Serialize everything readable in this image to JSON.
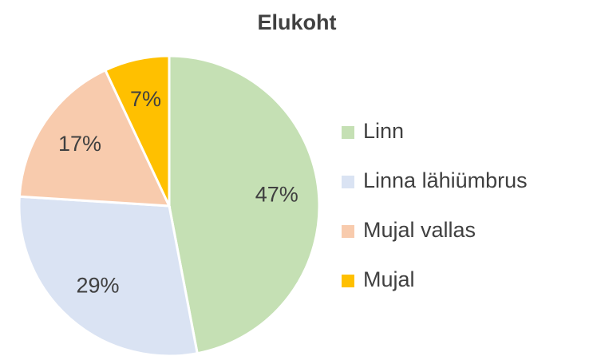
{
  "chart_data": {
    "type": "pie",
    "title": "Elukoht",
    "categories": [
      "Linn",
      "Linna lähiümbrus",
      "Mujal vallas",
      "Mujal"
    ],
    "values": [
      47,
      29,
      17,
      7
    ],
    "value_labels": [
      "47%",
      "29%",
      "17%",
      "7%"
    ],
    "colors": [
      "#c5e0b4",
      "#dae3f3",
      "#f8cbad",
      "#ffc000"
    ],
    "legend": "right"
  }
}
